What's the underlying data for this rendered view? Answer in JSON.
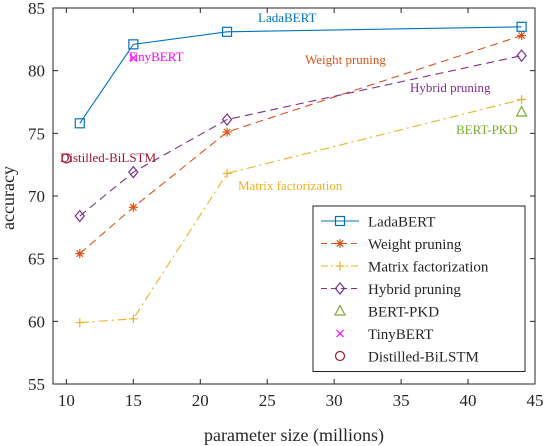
{
  "chart_data": {
    "type": "line",
    "xlabel": "parameter size (millions)",
    "ylabel": "accuracy",
    "xlim": [
      9,
      45
    ],
    "ylim": [
      55,
      85
    ],
    "xticks": [
      10,
      15,
      20,
      25,
      30,
      35,
      40,
      45
    ],
    "yticks": [
      55,
      60,
      65,
      70,
      75,
      80,
      85
    ],
    "grid": false,
    "legend_position": "lower-right",
    "series": [
      {
        "name": "LadaBERT",
        "color": "#0072BD",
        "linestyle": "solid",
        "marker": "square",
        "x": [
          11,
          15,
          22,
          44
        ],
        "y": [
          75.8,
          82.1,
          83.1,
          83.5
        ]
      },
      {
        "name": "Weight pruning",
        "color": "#D95319",
        "linestyle": "dashed",
        "marker": "asterisk",
        "x": [
          11,
          15,
          22,
          44
        ],
        "y": [
          65.4,
          69.1,
          75.1,
          82.8
        ]
      },
      {
        "name": "Matrix factorization",
        "color": "#EDB120",
        "linestyle": "dashdot",
        "marker": "plus",
        "x": [
          11,
          15,
          22,
          44
        ],
        "y": [
          59.9,
          60.2,
          71.8,
          77.7
        ]
      },
      {
        "name": "Hybrid pruning",
        "color": "#7E2F8E",
        "linestyle": "dashed",
        "marker": "diamond",
        "x": [
          11,
          15,
          22,
          44
        ],
        "y": [
          68.4,
          71.9,
          76.1,
          81.2
        ]
      },
      {
        "name": "BERT-PKD",
        "color": "#77AC30",
        "linestyle": "none",
        "marker": "triangle",
        "x": [
          44
        ],
        "y": [
          76.7
        ]
      },
      {
        "name": "TinyBERT",
        "color": "#FF00FF",
        "linestyle": "none",
        "marker": "x",
        "x": [
          15
        ],
        "y": [
          81.0
        ]
      },
      {
        "name": "Distilled-BiLSTM",
        "color": "#A2142F",
        "linestyle": "none",
        "marker": "circle",
        "x": [
          10
        ],
        "y": [
          73.0
        ]
      }
    ],
    "annotations": [
      {
        "text": "LadaBERT",
        "color": "#0072BD"
      },
      {
        "text": "TinyBERT",
        "color": "#FF00FF"
      },
      {
        "text": "Weight pruning",
        "color": "#D95319"
      },
      {
        "text": "Hybrid pruning",
        "color": "#7E2F8E"
      },
      {
        "text": "BERT-PKD",
        "color": "#77AC30"
      },
      {
        "text": "Distilled-BiLSTM",
        "color": "#A2142F"
      },
      {
        "text": "Matrix factorization",
        "color": "#EDB120"
      }
    ]
  }
}
